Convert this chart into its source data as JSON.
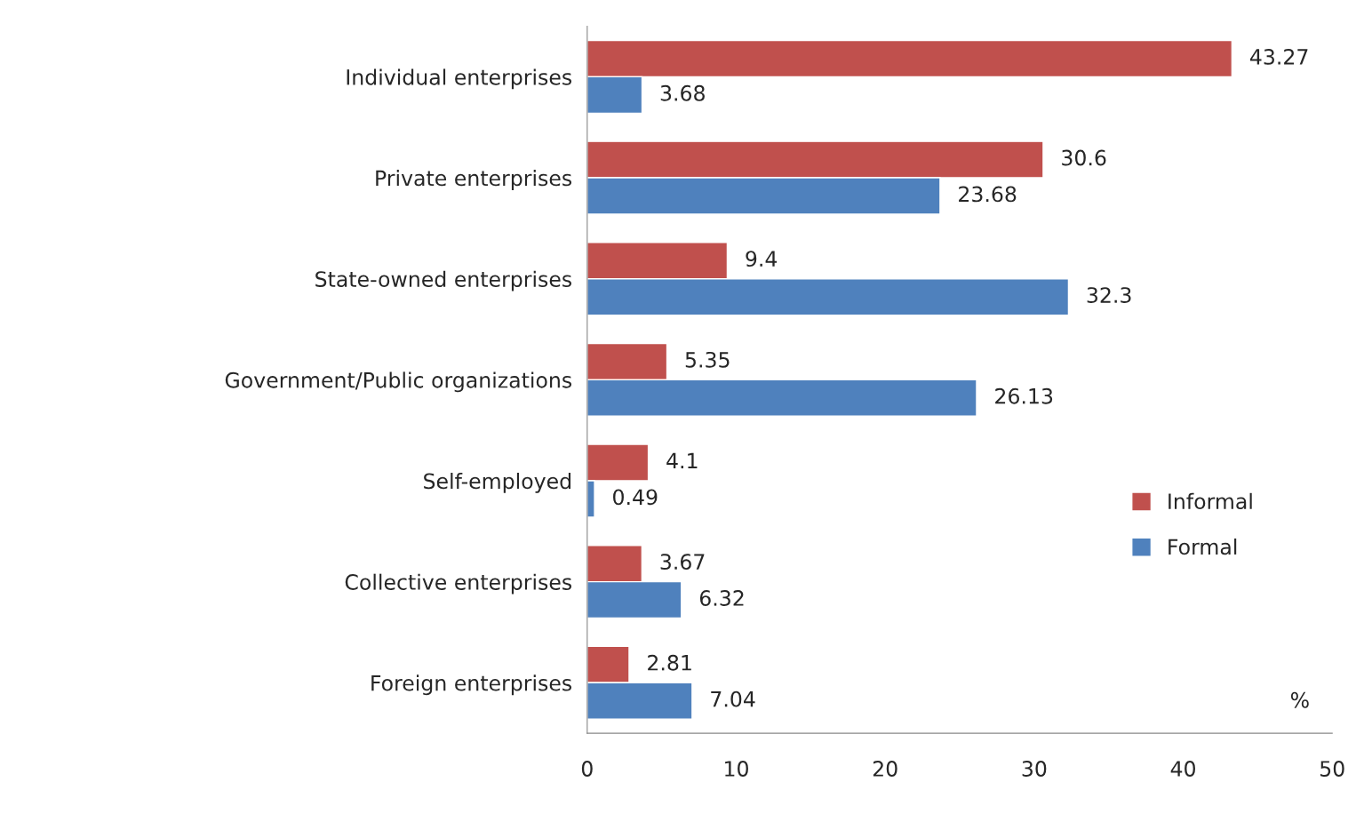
{
  "chart_data": {
    "type": "bar",
    "orientation": "horizontal",
    "categories": [
      "Individual enterprises",
      "Private enterprises",
      "State-owned enterprises",
      "Government/Public organizations",
      "Self-employed",
      "Collective enterprises",
      "Foreign enterprises"
    ],
    "series": [
      {
        "name": "Informal",
        "color": "#c0504d",
        "values": [
          43.27,
          30.6,
          9.4,
          5.35,
          4.1,
          3.67,
          2.81
        ]
      },
      {
        "name": "Formal",
        "color": "#4f81bd",
        "values": [
          3.68,
          23.68,
          32.3,
          26.13,
          0.49,
          6.32,
          7.04
        ]
      }
    ],
    "xlim": [
      0,
      50
    ],
    "xticks": [
      0,
      10,
      20,
      30,
      40,
      50
    ],
    "data_labels": true,
    "grid": false,
    "legend": "bottom right",
    "annotations": [
      "%"
    ]
  }
}
